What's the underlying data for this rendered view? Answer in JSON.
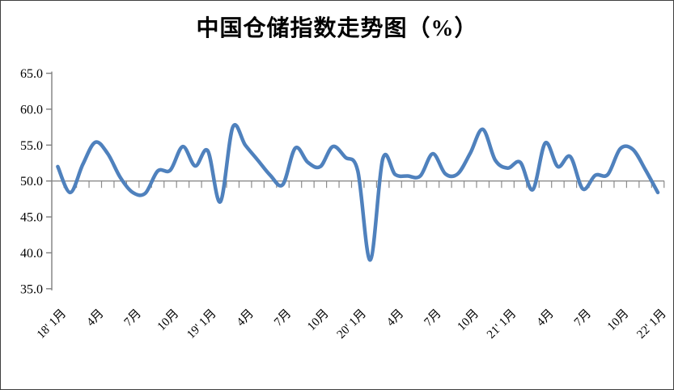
{
  "title": "中国仓储指数走势图（%）",
  "chart_data": {
    "type": "line",
    "title": "中国仓储指数走势图（%）",
    "xlabel": "",
    "ylabel": "",
    "ylim": [
      35,
      65
    ],
    "ytick_step": 5,
    "ytick_labels": [
      "65.0",
      "60.0",
      "55.0",
      "50.0",
      "45.0",
      "40.0",
      "35.0"
    ],
    "gridline_value": 50,
    "legend_position": "none",
    "smoothed_line": true,
    "months": [
      "2018-01",
      "2018-02",
      "2018-03",
      "2018-04",
      "2018-05",
      "2018-06",
      "2018-07",
      "2018-08",
      "2018-09",
      "2018-10",
      "2018-11",
      "2018-12",
      "2019-01",
      "2019-02",
      "2019-03",
      "2019-04",
      "2019-05",
      "2019-06",
      "2019-07",
      "2019-08",
      "2019-09",
      "2019-10",
      "2019-11",
      "2019-12",
      "2020-01",
      "2020-02",
      "2020-03",
      "2020-04",
      "2020-05",
      "2020-06",
      "2020-07",
      "2020-08",
      "2020-09",
      "2020-10",
      "2020-11",
      "2020-12",
      "2021-01",
      "2021-02",
      "2021-03",
      "2021-04",
      "2021-05",
      "2021-06",
      "2021-07",
      "2021-08",
      "2021-09",
      "2021-10",
      "2021-11",
      "2021-12",
      "2022-01"
    ],
    "values": [
      52.0,
      48.4,
      52.3,
      55.4,
      53.8,
      50.5,
      48.4,
      48.3,
      51.4,
      51.5,
      54.8,
      52.1,
      54.2,
      47.1,
      57.5,
      55.0,
      52.9,
      50.8,
      49.5,
      54.6,
      52.6,
      52.0,
      54.8,
      53.3,
      51.4,
      39.0,
      53.1,
      50.9,
      50.7,
      50.7,
      53.8,
      51.0,
      51.0,
      53.9,
      57.2,
      52.9,
      51.8,
      52.6,
      48.8,
      55.3,
      52.0,
      53.4,
      48.9,
      50.8,
      50.9,
      54.5,
      54.4,
      51.6,
      48.4
    ],
    "x_tick_labels": [
      "18' 1月",
      "4月",
      "7月",
      "10月",
      "19' 1月",
      "4月",
      "7月",
      "10月",
      "20' 1月",
      "4月",
      "7月",
      "10月",
      "21' 1月",
      "4月",
      "7月",
      "10月",
      "22' 1月"
    ],
    "x_tick_every": 3,
    "colors": {
      "line": "#4F81BD",
      "axis": "#7F7F7F",
      "gridline": "#8C8C8C",
      "text": "#000000",
      "border": "#404040"
    }
  }
}
